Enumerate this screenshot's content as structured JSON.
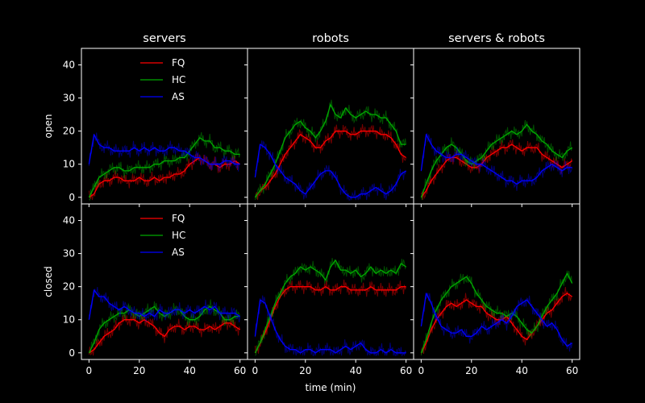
{
  "chart_data": {
    "type": "line",
    "columns": [
      "servers",
      "robots",
      "servers & robots"
    ],
    "rows": [
      "open",
      "closed"
    ],
    "xlabel": "time (min)",
    "xlim": [
      -3,
      63
    ],
    "ylim": [
      -2,
      45
    ],
    "xticks": [
      0,
      20,
      40,
      60
    ],
    "yticks": [
      0,
      10,
      20,
      30,
      40
    ],
    "legend": {
      "location": "upper-left",
      "panels": [
        "open-servers",
        "closed-servers"
      ]
    },
    "series_colors": {
      "FQ": "#ff0000",
      "HC": "#00aa00",
      "AS": "#0000ff"
    },
    "panels": [
      {
        "row": "open",
        "col": "servers",
        "x": [
          0,
          2,
          4,
          6,
          8,
          10,
          12,
          14,
          16,
          18,
          20,
          22,
          24,
          26,
          28,
          30,
          32,
          34,
          36,
          38,
          40,
          42,
          44,
          46,
          48,
          50,
          52,
          54,
          56,
          58,
          60
        ],
        "series": [
          {
            "name": "FQ",
            "values": [
              0,
              1,
              4,
              5,
              5,
              6,
              6,
              5,
              5,
              5,
              6,
              5,
              5,
              6,
              5,
              6,
              6,
              7,
              7,
              8,
              10,
              11,
              12,
              11,
              10,
              10,
              9,
              10,
              10,
              11,
              10
            ]
          },
          {
            "name": "HC",
            "values": [
              0,
              3,
              6,
              7,
              8,
              9,
              9,
              8,
              8,
              9,
              9,
              9,
              9,
              10,
              10,
              11,
              11,
              11,
              12,
              12,
              14,
              16,
              18,
              17,
              17,
              15,
              15,
              14,
              14,
              13,
              13
            ]
          },
          {
            "name": "AS",
            "values": [
              10,
              19,
              16,
              15,
              15,
              14,
              14,
              14,
              14,
              15,
              14,
              15,
              14,
              15,
              14,
              14,
              15,
              15,
              14,
              14,
              13,
              12,
              12,
              11,
              10,
              10,
              10,
              11,
              11,
              10,
              10
            ]
          }
        ]
      },
      {
        "row": "open",
        "col": "robots",
        "x": [
          0,
          2,
          4,
          6,
          8,
          10,
          12,
          14,
          16,
          18,
          20,
          22,
          24,
          26,
          28,
          30,
          32,
          34,
          36,
          38,
          40,
          42,
          44,
          46,
          48,
          50,
          52,
          54,
          56,
          58,
          60
        ],
        "series": [
          {
            "name": "FQ",
            "values": [
              0,
              2,
              3,
              5,
              7,
              10,
              13,
              15,
              17,
              19,
              18,
              17,
              15,
              15,
              17,
              18,
              20,
              20,
              20,
              19,
              19,
              20,
              20,
              20,
              20,
              19,
              19,
              18,
              16,
              13,
              12
            ]
          },
          {
            "name": "HC",
            "values": [
              0,
              2,
              4,
              7,
              10,
              14,
              18,
              20,
              22,
              23,
              21,
              20,
              18,
              20,
              23,
              28,
              25,
              24,
              27,
              25,
              24,
              25,
              26,
              25,
              25,
              24,
              24,
              22,
              20,
              16,
              16
            ]
          },
          {
            "name": "AS",
            "values": [
              6,
              16,
              15,
              13,
              10,
              8,
              6,
              5,
              4,
              2,
              1,
              3,
              5,
              7,
              8,
              8,
              6,
              3,
              1,
              0,
              0,
              1,
              1,
              2,
              3,
              2,
              1,
              2,
              4,
              7,
              8
            ]
          }
        ]
      },
      {
        "row": "open",
        "col": "servers & robots",
        "x": [
          0,
          2,
          4,
          6,
          8,
          10,
          12,
          14,
          16,
          18,
          20,
          22,
          24,
          26,
          28,
          30,
          32,
          34,
          36,
          38,
          40,
          42,
          44,
          46,
          48,
          50,
          52,
          54,
          56,
          58,
          60
        ],
        "series": [
          {
            "name": "FQ",
            "values": [
              0,
              2,
              5,
              7,
              9,
              11,
              12,
              12,
              11,
              10,
              9,
              9,
              10,
              12,
              13,
              14,
              15,
              15,
              16,
              15,
              14,
              15,
              15,
              15,
              13,
              12,
              11,
              10,
              9,
              10,
              11
            ]
          },
          {
            "name": "HC",
            "values": [
              0,
              4,
              8,
              11,
              13,
              15,
              16,
              15,
              13,
              11,
              10,
              11,
              12,
              14,
              16,
              17,
              18,
              19,
              20,
              19,
              20,
              22,
              20,
              19,
              17,
              16,
              14,
              13,
              12,
              14,
              15
            ]
          },
          {
            "name": "AS",
            "values": [
              8,
              19,
              16,
              14,
              13,
              12,
              12,
              13,
              13,
              12,
              11,
              10,
              10,
              9,
              8,
              7,
              6,
              5,
              5,
              4,
              5,
              5,
              5,
              6,
              8,
              9,
              10,
              9,
              8,
              9,
              9
            ]
          }
        ]
      },
      {
        "row": "closed",
        "col": "servers",
        "x": [
          0,
          2,
          4,
          6,
          8,
          10,
          12,
          14,
          16,
          18,
          20,
          22,
          24,
          26,
          28,
          30,
          32,
          34,
          36,
          38,
          40,
          42,
          44,
          46,
          48,
          50,
          52,
          54,
          56,
          58,
          60
        ],
        "series": [
          {
            "name": "FQ",
            "values": [
              0,
              1,
              3,
              5,
              6,
              7,
              9,
              10,
              10,
              10,
              9,
              10,
              9,
              8,
              6,
              5,
              7,
              8,
              8,
              7,
              8,
              8,
              7,
              7,
              8,
              7,
              8,
              9,
              9,
              8,
              7
            ]
          },
          {
            "name": "HC",
            "values": [
              0,
              3,
              7,
              9,
              10,
              11,
              12,
              12,
              13,
              12,
              11,
              12,
              13,
              14,
              12,
              11,
              12,
              13,
              13,
              11,
              10,
              10,
              11,
              13,
              14,
              13,
              12,
              10,
              10,
              11,
              11
            ]
          },
          {
            "name": "AS",
            "values": [
              10,
              19,
              17,
              17,
              15,
              14,
              13,
              14,
              13,
              12,
              12,
              11,
              12,
              11,
              13,
              12,
              12,
              13,
              13,
              12,
              13,
              12,
              13,
              14,
              13,
              14,
              12,
              12,
              12,
              12,
              11
            ]
          }
        ]
      },
      {
        "row": "closed",
        "col": "robots",
        "x": [
          0,
          2,
          4,
          6,
          8,
          10,
          12,
          14,
          16,
          18,
          20,
          22,
          24,
          26,
          28,
          30,
          32,
          34,
          36,
          38,
          40,
          42,
          44,
          46,
          48,
          50,
          52,
          54,
          56,
          58,
          60
        ],
        "series": [
          {
            "name": "FQ",
            "values": [
              0,
              3,
              6,
              10,
              14,
              17,
              19,
              20,
              20,
              20,
              20,
              20,
              19,
              19,
              20,
              19,
              19,
              20,
              20,
              19,
              19,
              19,
              19,
              20,
              19,
              19,
              19,
              19,
              19,
              20,
              20
            ]
          },
          {
            "name": "HC",
            "values": [
              0,
              3,
              7,
              11,
              15,
              18,
              21,
              23,
              24,
              26,
              25,
              26,
              25,
              24,
              22,
              26,
              28,
              25,
              25,
              24,
              25,
              23,
              24,
              26,
              24,
              25,
              24,
              25,
              24,
              27,
              26
            ]
          },
          {
            "name": "AS",
            "values": [
              5,
              16,
              15,
              11,
              7,
              4,
              2,
              1,
              1,
              0,
              1,
              1,
              0,
              1,
              1,
              1,
              0,
              1,
              2,
              1,
              2,
              3,
              1,
              0,
              0,
              1,
              0,
              1,
              0,
              0,
              0
            ]
          }
        ]
      },
      {
        "row": "closed",
        "col": "servers & robots",
        "x": [
          0,
          2,
          4,
          6,
          8,
          10,
          12,
          14,
          16,
          18,
          20,
          22,
          24,
          26,
          28,
          30,
          32,
          34,
          36,
          38,
          40,
          42,
          44,
          46,
          48,
          50,
          52,
          54,
          56,
          58,
          60
        ],
        "series": [
          {
            "name": "FQ",
            "values": [
              0,
              3,
              7,
              10,
              12,
              14,
              15,
              14,
              15,
              16,
              15,
              14,
              14,
              12,
              11,
              10,
              10,
              11,
              9,
              7,
              5,
              4,
              6,
              8,
              10,
              12,
              13,
              15,
              17,
              18,
              17
            ]
          },
          {
            "name": "HC",
            "values": [
              0,
              4,
              9,
              13,
              16,
              18,
              20,
              21,
              22,
              23,
              21,
              18,
              16,
              14,
              13,
              12,
              12,
              11,
              12,
              11,
              9,
              7,
              6,
              8,
              11,
              14,
              16,
              18,
              21,
              24,
              21
            ]
          },
          {
            "name": "AS",
            "values": [
              8,
              18,
              15,
              11,
              8,
              7,
              6,
              6,
              7,
              5,
              5,
              6,
              8,
              7,
              8,
              9,
              10,
              9,
              11,
              14,
              15,
              16,
              14,
              12,
              10,
              8,
              9,
              7,
              4,
              2,
              3
            ]
          }
        ]
      }
    ]
  }
}
